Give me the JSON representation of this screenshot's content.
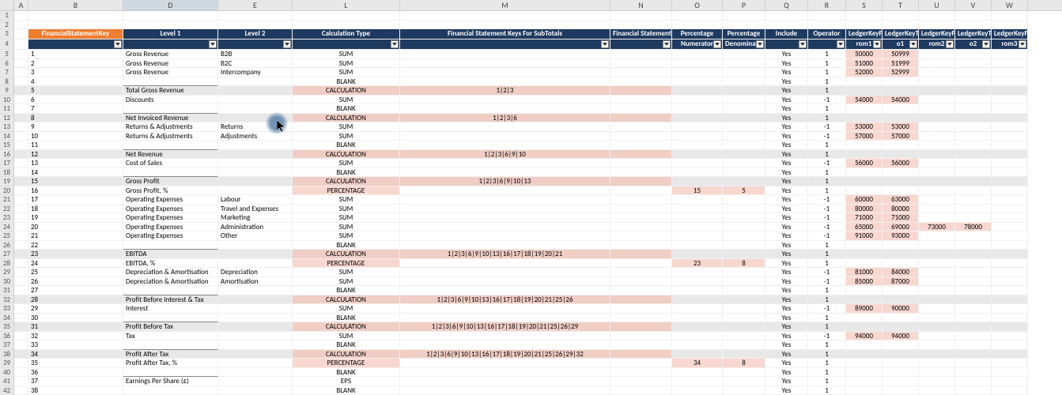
{
  "colLetters": [
    "A",
    "B",
    "D",
    "E",
    "L",
    "M",
    "N",
    "O",
    "P",
    "Q",
    "R",
    "S",
    "T",
    "U",
    "V",
    "W"
  ],
  "colClasses": [
    "col-A",
    "col-B",
    "col-D",
    "col-E",
    "col-L",
    "col-M",
    "col-N",
    "col-O",
    "col-P",
    "col-Q",
    "col-R",
    "col-S",
    "col-T",
    "col-U",
    "col-V",
    "col-W"
  ],
  "header1": {
    "B": "FinancialStatementKey",
    "D": "Level 1",
    "E": "Level 2",
    "L": "Calculation Type",
    "M": "Financial Statement Keys For SubTotals",
    "N": "Financial Statement GL For SubTotal",
    "O": "Percentage",
    "P": "Percentage",
    "Q": "Include",
    "R": "Operator",
    "S": "LedgerKeyF",
    "T": "LedgerKeyT",
    "U": "LedgerKeyF",
    "V": "LedgerKeyT",
    "W": "LedgerKeyF"
  },
  "header2": {
    "B": "",
    "D": "",
    "E": "",
    "L": "",
    "M": "",
    "N": "",
    "O": "Numerator",
    "P": "Denominator",
    "Q": "",
    "R": "",
    "S": "rom1",
    "T": "o1",
    "U": "rom2",
    "V": "o2",
    "W": "rom3"
  },
  "rowNums": [
    1,
    2,
    3,
    4,
    5,
    6,
    7,
    8,
    9,
    10,
    11,
    12,
    13,
    14,
    15,
    16,
    17,
    18,
    19,
    20,
    21,
    22,
    23,
    24,
    25,
    26,
    27,
    28,
    29,
    30,
    31,
    32,
    33,
    34,
    35,
    36,
    37,
    38,
    39,
    40,
    41,
    42
  ],
  "data": [
    {
      "r": 5,
      "key": "1",
      "l1": "Gross Revenue",
      "l2": "B2B",
      "ct": "SUM",
      "q": "Yes",
      "op": "1",
      "s": "50000",
      "t": "50999"
    },
    {
      "r": 6,
      "key": "2",
      "l1": "Gross Revenue",
      "l2": "B2C",
      "ct": "SUM",
      "q": "Yes",
      "op": "1",
      "s": "51000",
      "t": "51999"
    },
    {
      "r": 7,
      "key": "3",
      "l1": "Gross Revenue",
      "l2": "Intercompany",
      "ct": "SUM",
      "q": "Yes",
      "op": "1",
      "s": "52000",
      "t": "52999"
    },
    {
      "r": 8,
      "key": "4",
      "l1": "",
      "l2": "",
      "ct": "BLANK",
      "q": "Yes",
      "op": "1",
      "ul": true
    },
    {
      "r": 9,
      "key": "5",
      "l1": "Total Gross Revenue",
      "l2": "",
      "ct": "CALCULATION",
      "m": "1|2|3",
      "q": "Yes",
      "op": "1",
      "hi": true
    },
    {
      "r": 10,
      "key": "6",
      "l1": "Discounts",
      "l2": "",
      "ct": "SUM",
      "q": "Yes",
      "op": "-1",
      "s": "54000",
      "t": "54000"
    },
    {
      "r": 11,
      "key": "7",
      "l1": "",
      "l2": "",
      "ct": "BLANK",
      "q": "Yes",
      "op": "1",
      "ul": true
    },
    {
      "r": 12,
      "key": "8",
      "l1": "Net Invoiced Revenue",
      "l2": "",
      "ct": "CALCULATION",
      "m": "1|2|3|6",
      "q": "Yes",
      "op": "1",
      "hi": true
    },
    {
      "r": 13,
      "key": "9",
      "l1": "Returns & Adjustments",
      "l2": "Returns",
      "ct": "SUM",
      "q": "Yes",
      "op": "-1",
      "s": "53000",
      "t": "53000"
    },
    {
      "r": 14,
      "key": "10",
      "l1": "Returns & Adjustments",
      "l2": "Adjustments",
      "ct": "SUM",
      "q": "Yes",
      "op": "-1",
      "s": "57000",
      "t": "57000"
    },
    {
      "r": 15,
      "key": "11",
      "l1": "",
      "l2": "",
      "ct": "BLANK",
      "q": "Yes",
      "op": "1",
      "ul": true
    },
    {
      "r": 16,
      "key": "12",
      "l1": "Net Revenue",
      "l2": "",
      "ct": "CALCULATION",
      "m": "1|2|3|6|9|10",
      "q": "Yes",
      "op": "1",
      "hi": true
    },
    {
      "r": 17,
      "key": "13",
      "l1": "Cost of Sales",
      "l2": "",
      "ct": "SUM",
      "q": "Yes",
      "op": "-1",
      "s": "56000",
      "t": "56000"
    },
    {
      "r": 18,
      "key": "14",
      "l1": "",
      "l2": "",
      "ct": "BLANK",
      "q": "Yes",
      "op": "1",
      "ul": true
    },
    {
      "r": 19,
      "key": "15",
      "l1": "Gross Profit",
      "l2": "",
      "ct": "CALCULATION",
      "m": "1|2|3|6|9|10|13",
      "q": "Yes",
      "op": "1",
      "hi": true
    },
    {
      "r": 20,
      "key": "16",
      "l1": "Gross Profit, %",
      "l2": "",
      "ct": "PERCENTAGE",
      "o": "15",
      "p": "5",
      "q": "Yes",
      "op": "1"
    },
    {
      "r": 21,
      "key": "17",
      "l1": "Operating Expenses",
      "l2": "Labour",
      "ct": "SUM",
      "q": "Yes",
      "op": "-1",
      "s": "60000",
      "t": "63000"
    },
    {
      "r": 22,
      "key": "18",
      "l1": "Operating Expenses",
      "l2": "Travel and Expenses",
      "ct": "SUM",
      "q": "Yes",
      "op": "-1",
      "s": "80000",
      "t": "80000"
    },
    {
      "r": 23,
      "key": "19",
      "l1": "Operating Expenses",
      "l2": "Marketing",
      "ct": "SUM",
      "q": "Yes",
      "op": "-1",
      "s": "71000",
      "t": "71000"
    },
    {
      "r": 24,
      "key": "20",
      "l1": "Operating Expenses",
      "l2": "Administration",
      "ct": "SUM",
      "q": "Yes",
      "op": "-1",
      "s": "65000",
      "t": "69000",
      "u": "73000",
      "v": "78000"
    },
    {
      "r": 25,
      "key": "21",
      "l1": "Operating Expenses",
      "l2": "Other",
      "ct": "SUM",
      "q": "Yes",
      "op": "-1",
      "s": "91000",
      "t": "93000"
    },
    {
      "r": 26,
      "key": "22",
      "l1": "",
      "l2": "",
      "ct": "BLANK",
      "q": "Yes",
      "op": "1",
      "ul": true
    },
    {
      "r": 27,
      "key": "23",
      "l1": "EBITDA",
      "l2": "",
      "ct": "CALCULATION",
      "m": "1|2|3|6|9|10|13|16|17|18|19|20|21",
      "q": "Yes",
      "op": "1",
      "hi": true
    },
    {
      "r": 28,
      "key": "24",
      "l1": "EBITDA, %",
      "l2": "",
      "ct": "PERCENTAGE",
      "o": "23",
      "p": "8",
      "q": "Yes",
      "op": "1"
    },
    {
      "r": 29,
      "key": "25",
      "l1": "Depreciation & Amortisation",
      "l2": "Depreciation",
      "ct": "SUM",
      "q": "Yes",
      "op": "-1",
      "s": "81000",
      "t": "84000"
    },
    {
      "r": 30,
      "key": "26",
      "l1": "Depreciation & Amortisation",
      "l2": "Amortisation",
      "ct": "SUM",
      "q": "Yes",
      "op": "-1",
      "s": "85000",
      "t": "87000"
    },
    {
      "r": 31,
      "key": "27",
      "l1": "",
      "l2": "",
      "ct": "BLANK",
      "q": "Yes",
      "op": "1",
      "ul": true
    },
    {
      "r": 32,
      "key": "28",
      "l1": "Profit Before Interest & Tax",
      "l2": "",
      "ct": "CALCULATION",
      "m": "1|2|3|6|9|10|13|16|17|18|19|20|21|25|26",
      "q": "Yes",
      "op": "1",
      "hi": true
    },
    {
      "r": 33,
      "key": "29",
      "l1": "Interest",
      "l2": "",
      "ct": "SUM",
      "q": "Yes",
      "op": "-1",
      "s": "89000",
      "t": "90000"
    },
    {
      "r": 34,
      "key": "30",
      "l1": "",
      "l2": "",
      "ct": "BLANK",
      "q": "Yes",
      "op": "1",
      "ul": true
    },
    {
      "r": 35,
      "key": "31",
      "l1": "Profit Before Tax",
      "l2": "",
      "ct": "CALCULATION",
      "m": "1|2|3|6|9|10|13|16|17|18|19|20|21|25|26|29",
      "q": "Yes",
      "op": "1",
      "hi": true
    },
    {
      "r": 36,
      "key": "32",
      "l1": "Tax",
      "l2": "",
      "ct": "SUM",
      "q": "Yes",
      "op": "-1",
      "s": "94000",
      "t": "94000"
    },
    {
      "r": 37,
      "key": "33",
      "l1": "",
      "l2": "",
      "ct": "BLANK",
      "q": "Yes",
      "op": "1",
      "ul": true
    },
    {
      "r": 38,
      "key": "34",
      "l1": "Profit After Tax",
      "l2": "",
      "ct": "CALCULATION",
      "m": "1|2|3|6|9|10|13|16|17|18|19|20|21|25|26|29|32",
      "q": "Yes",
      "op": "1",
      "hi": true
    },
    {
      "r": 39,
      "key": "35",
      "l1": "Profit After Tax, %",
      "l2": "",
      "ct": "PERCENTAGE",
      "o": "34",
      "p": "8",
      "q": "Yes",
      "op": "1"
    },
    {
      "r": 40,
      "key": "36",
      "l1": "",
      "l2": "",
      "ct": "BLANK",
      "q": "Yes",
      "op": "1",
      "ul": true
    },
    {
      "r": 41,
      "key": "37",
      "l1": "Earnings Per Share (£)",
      "l2": "",
      "ct": "EPS",
      "q": "Yes",
      "op": "1"
    },
    {
      "r": 42,
      "key": "38",
      "l1": "",
      "l2": "",
      "ct": "BLANK",
      "q": "Yes",
      "op": "1"
    }
  ],
  "colors": {
    "hdr": "#1f3a5f",
    "accent": "#ed7d31",
    "calcHighlight": "#f8d7d0",
    "rowHighlight": "#e8e8e8"
  }
}
